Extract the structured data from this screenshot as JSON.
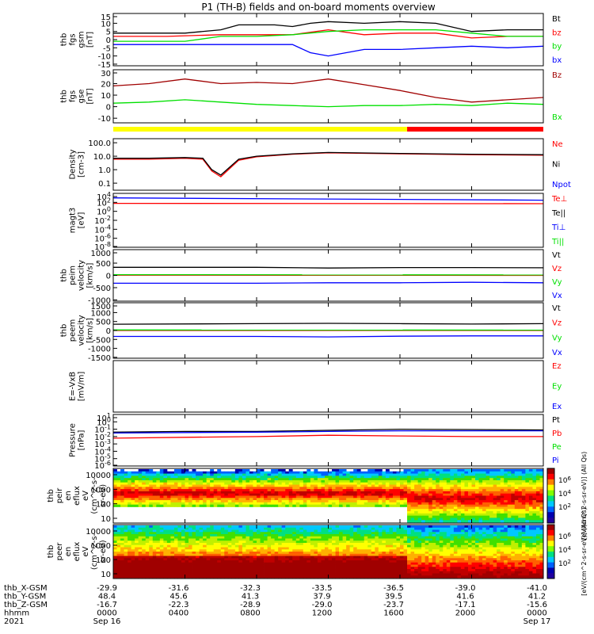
{
  "title": "P1 (TH-B) fields and on-board moments overview",
  "colors": {
    "black": "#000000",
    "red": "#ff0000",
    "darkred": "#a00000",
    "green": "#00e000",
    "blue": "#0000ff",
    "yellow": "#ffff00",
    "white": "#ffffff"
  },
  "chart_data": {
    "type": "line",
    "title": "P1 (TH-B) fields and on-board moments overview",
    "x_range_hours": [
      0,
      24
    ],
    "panels": [
      {
        "name": "fgs-gsm-mag",
        "ylabel": [
          "thb",
          "fgs",
          "gsm",
          "[nT]"
        ],
        "yticks": [
          "15",
          "10",
          "5",
          "0",
          "-5",
          "-10",
          "-15"
        ],
        "ytick_values": [
          15,
          10,
          5,
          0,
          -5,
          -10,
          -15
        ],
        "ylim": [
          -16,
          16
        ],
        "legend": [
          {
            "text": "Bt",
            "color": "#000000"
          },
          {
            "text": "bz",
            "color": "#ff0000"
          },
          {
            "text": "by",
            "color": "#00e000"
          },
          {
            "text": "bx",
            "color": "#0000ff"
          }
        ],
        "series": [
          {
            "name": "Bt",
            "color": "#000000",
            "x": [
              0,
              4,
              6,
              7,
              8,
              9,
              10,
              11,
              12,
              14,
              16,
              18,
              20,
              22,
              24
            ],
            "y": [
              4,
              4,
              6,
              9,
              9,
              9,
              8,
              10,
              11,
              10,
              11,
              10,
              5,
              6,
              6
            ]
          },
          {
            "name": "bz",
            "color": "#ff0000",
            "x": [
              0,
              3,
              6,
              7,
              8,
              10,
              12,
              14,
              16,
              18,
              20,
              22,
              24
            ],
            "y": [
              2,
              2,
              3,
              3,
              3,
              3,
              6,
              3,
              4,
              4,
              1,
              2,
              2
            ]
          },
          {
            "name": "by",
            "color": "#00e000",
            "x": [
              0,
              4,
              6,
              8,
              10,
              12,
              14,
              16,
              18,
              20,
              22,
              24
            ],
            "y": [
              -1,
              -1,
              2,
              2,
              3,
              5,
              6,
              6,
              6,
              4,
              2,
              2
            ]
          },
          {
            "name": "bx",
            "color": "#0000ff",
            "x": [
              0,
              4,
              6,
              8,
              10,
              11,
              12,
              14,
              16,
              18,
              20,
              22,
              24
            ],
            "y": [
              -3,
              -3,
              -3,
              -3,
              -3,
              -8,
              -10,
              -6,
              -6,
              -5,
              -4,
              -5,
              -4
            ]
          }
        ]
      },
      {
        "name": "fgs-gse-mag",
        "ylabel": [
          "thb",
          "fgs",
          "gse",
          "[nT]"
        ],
        "yticks": [
          "30",
          "20",
          "10",
          "0",
          "-10"
        ],
        "ytick_values": [
          30,
          20,
          10,
          0,
          -10
        ],
        "ylim": [
          -14,
          32
        ],
        "legend": [
          {
            "text": "Bz",
            "color": "#a00000"
          },
          {
            "text": "Bx",
            "color": "#00e000"
          }
        ],
        "series": [
          {
            "name": "Bz",
            "color": "#a00000",
            "x": [
              0,
              2,
              4,
              6,
              8,
              10,
              12,
              14,
              16,
              18,
              20,
              22,
              24
            ],
            "y": [
              18,
              20,
              24,
              20,
              21,
              20,
              24,
              19,
              14,
              8,
              4,
              6,
              8
            ]
          },
          {
            "name": "Bx",
            "color": "#00e000",
            "x": [
              0,
              2,
              4,
              6,
              8,
              10,
              12,
              14,
              16,
              18,
              20,
              22,
              24
            ],
            "y": [
              3,
              4,
              6,
              4,
              2,
              1,
              0,
              1,
              1,
              2,
              1,
              3,
              2
            ]
          }
        ]
      },
      {
        "name": "density",
        "ylabel": [
          "Density",
          "[cm-3]"
        ],
        "yticks": [
          "100.0",
          "10.0",
          "1.0",
          "0.1"
        ],
        "ytick_values": [
          100,
          10,
          1,
          0.1
        ],
        "scale": "log",
        "ylim": [
          0.03,
          200
        ],
        "legend": [
          {
            "text": "Ne",
            "color": "#ff0000"
          },
          {
            "text": "Ni",
            "color": "#000000"
          },
          {
            "text": "Npot",
            "color": "#0000ff"
          }
        ],
        "series": [
          {
            "name": "Ne",
            "color": "#ff0000",
            "x": [
              0,
              2,
              4,
              5,
              5.5,
              6,
              7,
              8,
              10,
              12,
              16,
              20,
              24
            ],
            "y": [
              6,
              6,
              7,
              6,
              0.8,
              0.3,
              5,
              9,
              14,
              18,
              15,
              13,
              12
            ]
          },
          {
            "name": "Ni",
            "color": "#000000",
            "x": [
              0,
              2,
              4,
              5,
              5.5,
              6,
              7,
              8,
              10,
              12,
              16,
              20,
              24
            ],
            "y": [
              7,
              7,
              8,
              7,
              1,
              0.4,
              6,
              10,
              15,
              19,
              16,
              14,
              13
            ]
          }
        ]
      },
      {
        "name": "mag-temp",
        "ylabel": [
          "magt3",
          "[eV]"
        ],
        "yticks": [
          "10^4",
          "10^2",
          "10^0",
          "10^-2",
          "10^-4",
          "10^-6",
          "10^-8"
        ],
        "ytick_values": [
          10000,
          100,
          1,
          0.01,
          0.0001,
          1e-06,
          1e-08
        ],
        "scale": "log",
        "legend": [
          {
            "text": "Te⊥",
            "color": "#ff0000"
          },
          {
            "text": "Te||",
            "color": "#000000"
          },
          {
            "text": "Ti⊥",
            "color": "#0000ff"
          },
          {
            "text": "Ti||",
            "color": "#00e000"
          }
        ],
        "series": [
          {
            "name": "Ti",
            "color": "#0000ff",
            "x": [
              0,
              24
            ],
            "y": [
              1000,
              300
            ]
          },
          {
            "name": "Te",
            "color": "#ff0000",
            "x": [
              0,
              24
            ],
            "y": [
              60,
              50
            ]
          }
        ]
      },
      {
        "name": "peim-velocity",
        "ylabel": [
          "thb",
          "peim",
          "velocity",
          "[km/s]"
        ],
        "yticks": [
          "1000",
          "500",
          "0",
          "-500",
          "-1000"
        ],
        "ytick_values": [
          1000,
          500,
          0,
          -500,
          -1000
        ],
        "ylim": [
          -1050,
          1050
        ],
        "legend": [
          {
            "text": "Vt",
            "color": "#000000"
          },
          {
            "text": "Vz",
            "color": "#ff0000"
          },
          {
            "text": "Vy",
            "color": "#00e000"
          },
          {
            "text": "Vx",
            "color": "#0000ff"
          }
        ],
        "series": [
          {
            "name": "Vt",
            "color": "#000000",
            "x": [
              0,
              8,
              12,
              16,
              20,
              24
            ],
            "y": [
              330,
              330,
              300,
              320,
              320,
              310
            ]
          },
          {
            "name": "Vz",
            "color": "#ff0000",
            "x": [
              0,
              24
            ],
            "y": [
              10,
              0
            ]
          },
          {
            "name": "Vy",
            "color": "#00e000",
            "x": [
              0,
              24
            ],
            "y": [
              30,
              20
            ]
          },
          {
            "name": "Vx",
            "color": "#0000ff",
            "x": [
              0,
              8,
              12,
              16,
              20,
              24
            ],
            "y": [
              -320,
              -320,
              -300,
              -300,
              -280,
              -300
            ]
          }
        ]
      },
      {
        "name": "peem-velocity",
        "ylabel": [
          "thb",
          "peem",
          "velocity",
          "[km/s]"
        ],
        "yticks": [
          "1500",
          "1000",
          "500",
          "0",
          "-500",
          "-1000",
          "-1500"
        ],
        "ytick_values": [
          1500,
          1000,
          500,
          0,
          -500,
          -1000,
          -1500
        ],
        "ylim": [
          -1550,
          1550
        ],
        "legend": [
          {
            "text": "Vt",
            "color": "#000000"
          },
          {
            "text": "Vz",
            "color": "#ff0000"
          },
          {
            "text": "Vy",
            "color": "#00e000"
          },
          {
            "text": "Vx",
            "color": "#0000ff"
          }
        ],
        "series": [
          {
            "name": "Vt",
            "color": "#000000",
            "x": [
              0,
              8,
              12,
              16,
              20,
              24
            ],
            "y": [
              350,
              380,
              400,
              380,
              360,
              380
            ]
          },
          {
            "name": "Vz",
            "color": "#ff0000",
            "x": [
              0,
              24
            ],
            "y": [
              0,
              0
            ]
          },
          {
            "name": "Vy",
            "color": "#00e000",
            "x": [
              0,
              24
            ],
            "y": [
              30,
              20
            ]
          },
          {
            "name": "Vx",
            "color": "#0000ff",
            "x": [
              0,
              8,
              12,
              16,
              20,
              24
            ],
            "y": [
              -330,
              -330,
              -360,
              -320,
              -300,
              -300
            ]
          }
        ]
      },
      {
        "name": "e-field",
        "ylabel": [
          "E=-VxB",
          "[mV/m]"
        ],
        "legend": [
          {
            "text": "Ez",
            "color": "#ff0000"
          },
          {
            "text": "Ey",
            "color": "#00e000"
          },
          {
            "text": "Ex",
            "color": "#0000ff"
          }
        ],
        "series": []
      },
      {
        "name": "pressure",
        "ylabel": [
          "Pressure",
          "[nPa]"
        ],
        "yticks": [
          "10^1",
          "10^0",
          "10^-1",
          "10^-2",
          "10^-3",
          "10^-4",
          "10^-5",
          "10^-6"
        ],
        "ytick_values": [
          10,
          1,
          0.1,
          0.01,
          0.001,
          0.0001,
          1e-05,
          1e-06
        ],
        "scale": "log",
        "legend": [
          {
            "text": "Pt",
            "color": "#000000"
          },
          {
            "text": "Pb",
            "color": "#ff0000"
          },
          {
            "text": "Pe",
            "color": "#00e000"
          },
          {
            "text": "Pi",
            "color": "#0000ff"
          }
        ],
        "series": [
          {
            "name": "Pt",
            "color": "#000000",
            "x": [
              0,
              4,
              8,
              12,
              16,
              20,
              24
            ],
            "y": [
              0.04,
              0.05,
              0.05,
              0.07,
              0.1,
              0.09,
              0.08
            ]
          },
          {
            "name": "Pi",
            "color": "#0000ff",
            "x": [
              0,
              4,
              8,
              12,
              16,
              20,
              24
            ],
            "y": [
              0.03,
              0.035,
              0.04,
              0.05,
              0.06,
              0.06,
              0.06
            ]
          },
          {
            "name": "Pb",
            "color": "#ff0000",
            "x": [
              0,
              4,
              8,
              12,
              16,
              20,
              24
            ],
            "y": [
              0.006,
              0.008,
              0.01,
              0.015,
              0.012,
              0.01,
              0.01
            ]
          }
        ]
      },
      {
        "name": "peir-energy-spectrum",
        "type": "heatmap",
        "ylabel": [
          "thb",
          "peir",
          "en",
          "eflux",
          "eV",
          "(cm^2-s-",
          "sr-eV)"
        ],
        "yticks": [
          "10000",
          "1000",
          "100",
          "10"
        ],
        "ytick_values": [
          10000,
          1000,
          100,
          10
        ],
        "colorbar": {
          "ticks": [
            "10^6",
            "10^4",
            "10^2"
          ],
          "label": "[eV/(cm^2-s-sr-eV)] (All Qs)"
        }
      },
      {
        "name": "peer-energy-spectrum",
        "type": "heatmap",
        "ylabel": [
          "thb",
          "peer",
          "en",
          "eflux",
          "eV",
          "(cm^2-s-",
          "sr-eV)"
        ],
        "yticks": [
          "10000",
          "1000",
          "100",
          "10"
        ],
        "ytick_values": [
          10000,
          1000,
          100,
          10
        ],
        "colorbar": {
          "ticks": [
            "10^6",
            "10^4",
            "10^2"
          ],
          "label": "[eV/(cm^2-s-sr-eV)] (All Qs)"
        }
      }
    ],
    "mode_bar": [
      {
        "from": 0,
        "to": 16.4,
        "color": "#ffff00"
      },
      {
        "from": 16.4,
        "to": 24,
        "color": "#ff0000"
      }
    ],
    "x_axis_rows": [
      {
        "label": "thb_X-GSM",
        "values": [
          "-29.9",
          "-31.6",
          "-32.3",
          "-33.5",
          "-36.5",
          "-39.0",
          "-41.0"
        ]
      },
      {
        "label": "thb_Y-GSM",
        "values": [
          "48.4",
          "45.6",
          "41.3",
          "37.9",
          "39.5",
          "41.6",
          "41.2"
        ]
      },
      {
        "label": "thb_Z-GSM",
        "values": [
          "-16.7",
          "-22.3",
          "-28.9",
          "-29.0",
          "-23.7",
          "-17.1",
          "-15.6"
        ]
      },
      {
        "label": "hhmm",
        "values": [
          "0000",
          "0400",
          "0800",
          "1200",
          "1600",
          "2000",
          "0000"
        ]
      },
      {
        "label": "2021",
        "values": [
          "Sep 16",
          "",
          "",
          "",
          "",
          "",
          "Sep 17"
        ]
      }
    ],
    "x_tick_hours": [
      0,
      4,
      8,
      12,
      16,
      20,
      24
    ]
  }
}
